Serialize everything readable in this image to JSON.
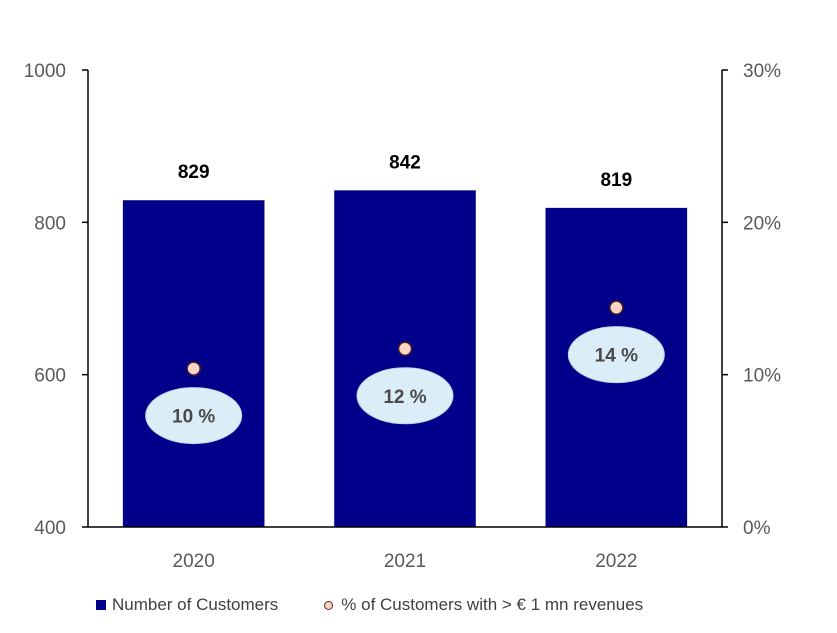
{
  "chart_data": {
    "type": "bar",
    "categories": [
      "2020",
      "2021",
      "2022"
    ],
    "series": [
      {
        "name": "Number of Customers",
        "type": "bar",
        "axis": "left",
        "values": [
          829,
          842,
          819
        ],
        "data_labels": [
          "829",
          "842",
          "819"
        ],
        "color": "#00008b"
      },
      {
        "name": "% of Customers with > € 1 mn revenues",
        "type": "scatter",
        "axis": "right",
        "values": [
          10.4,
          11.7,
          14.4
        ],
        "data_labels": [
          "10 %",
          "12 %",
          "14 %"
        ],
        "color": "#fcd5c8"
      }
    ],
    "y_left": {
      "ylim": [
        400,
        1000
      ],
      "ticks": [
        "400",
        "600",
        "800",
        "1000"
      ]
    },
    "y_right": {
      "ylim": [
        0,
        30
      ],
      "ticks": [
        "0%",
        "10%",
        "20%",
        "30%"
      ]
    },
    "grid": false,
    "legend_position": "bottom",
    "label_bubble_color": "#dbeef8"
  },
  "legend": {
    "bar_label": "Number of Customers",
    "dot_label": "% of Customers with > € 1 mn revenues"
  }
}
